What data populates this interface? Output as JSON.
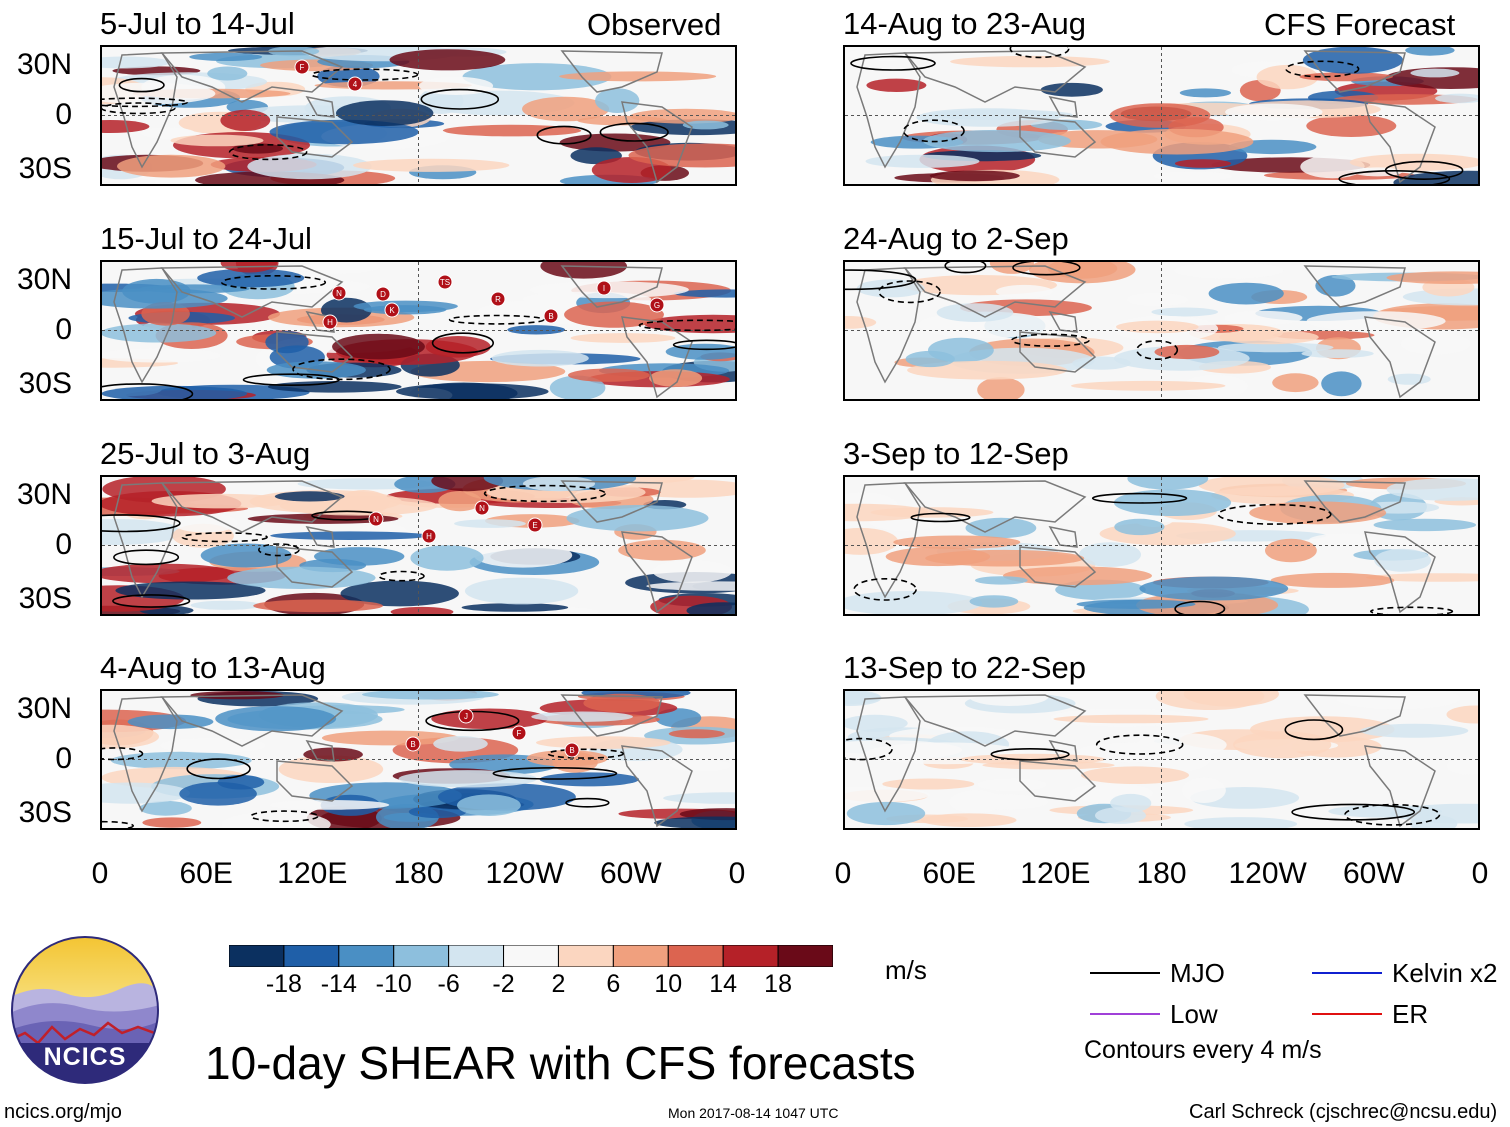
{
  "main_title": "10-day SHEAR with CFS forecasts",
  "column_labels": {
    "left": "Observed",
    "right": "CFS Forecast"
  },
  "panels": [
    {
      "period": "5-Jul to 14-Jul",
      "column": "observed",
      "storms": [
        "F",
        "4"
      ]
    },
    {
      "period": "15-Jul to 24-Jul",
      "column": "observed",
      "storms": [
        "N",
        "K",
        "TS",
        "R",
        "B",
        "I",
        "G",
        "H",
        "D"
      ]
    },
    {
      "period": "25-Jul to 3-Aug",
      "column": "observed",
      "storms": [
        "N",
        "H",
        "N",
        "E"
      ]
    },
    {
      "period": "4-Aug to 13-Aug",
      "column": "observed",
      "storms": [
        "B",
        "J",
        "F",
        "B"
      ]
    },
    {
      "period": "14-Aug to 23-Aug",
      "column": "forecast",
      "storms": []
    },
    {
      "period": "24-Aug to 2-Sep",
      "column": "forecast",
      "storms": []
    },
    {
      "period": "3-Sep to 12-Sep",
      "column": "forecast",
      "storms": []
    },
    {
      "period": "13-Sep to 22-Sep",
      "column": "forecast",
      "storms": []
    }
  ],
  "y_ticks": [
    "30N",
    "0",
    "30S"
  ],
  "x_ticks": [
    "0",
    "60E",
    "120E",
    "180",
    "120W",
    "60W",
    "0"
  ],
  "colorbar": {
    "units": "m/s",
    "ticks": [
      "-18",
      "-14",
      "-10",
      "-6",
      "-2",
      "2",
      "6",
      "10",
      "14",
      "18"
    ],
    "colors": [
      "#0b3060",
      "#1f5fa8",
      "#4a8fc4",
      "#8dbfdd",
      "#d3e5f0",
      "#f8f8f8",
      "#fbd6c0",
      "#f0a07e",
      "#dc6450",
      "#b52128",
      "#6a0a18"
    ]
  },
  "legend": {
    "items": [
      {
        "label": "MJO",
        "color": "#000000"
      },
      {
        "label": "Kelvin x2",
        "color": "#1020d0"
      },
      {
        "label": "Low",
        "color": "#a040d8"
      },
      {
        "label": "ER",
        "color": "#e01010"
      }
    ],
    "contour_note": "Contours every 4 m/s"
  },
  "logo_text": "NCICS",
  "footer": {
    "url": "ncics.org/mjo",
    "timestamp": "Mon 2017-08-14 1047 UTC",
    "author": "Carl Schreck (cjschrec@ncsu.edu)"
  }
}
